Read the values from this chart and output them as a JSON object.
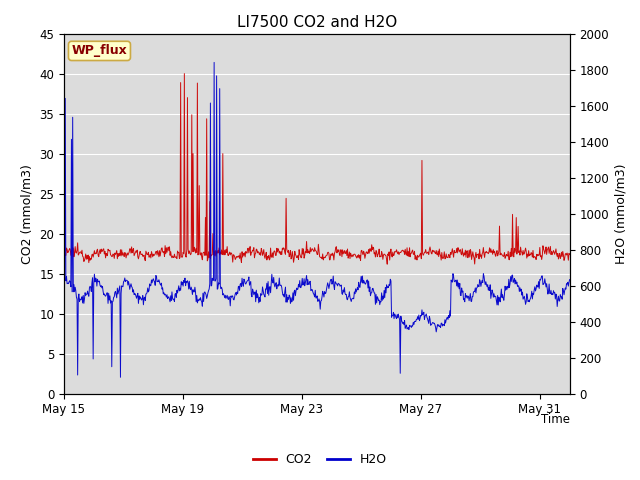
{
  "title": "LI7500 CO2 and H2O",
  "xlabel": "Time",
  "ylabel_left": "CO2 (mmol/m3)",
  "ylabel_right": "H2O (mmol/m3)",
  "ylim_left": [
    0,
    45
  ],
  "ylim_right": [
    0,
    2000
  ],
  "yticks_left": [
    0,
    5,
    10,
    15,
    20,
    25,
    30,
    35,
    40,
    45
  ],
  "yticks_right": [
    0,
    200,
    400,
    600,
    800,
    1000,
    1200,
    1400,
    1600,
    1800,
    2000
  ],
  "x_tick_vals": [
    0,
    4,
    8,
    12,
    16
  ],
  "x_tick_labels": [
    "May 15",
    "May 19",
    "May 23",
    "May 27",
    "May 31"
  ],
  "fig_bg_color": "#ffffff",
  "plot_bg_color": "#dcdcdc",
  "grid_color": "#ffffff",
  "co2_color": "#cc0000",
  "h2o_color": "#0000cc",
  "legend_co2": "CO2",
  "legend_h2o": "H2O",
  "watermark_text": "WP_flux",
  "watermark_fg": "#880000",
  "watermark_bg": "#ffffcc",
  "watermark_border": "#ccaa44",
  "title_fontsize": 11,
  "label_fontsize": 9,
  "tick_fontsize": 8.5,
  "legend_fontsize": 9,
  "n_days": 17,
  "xlim": [
    0,
    17
  ]
}
